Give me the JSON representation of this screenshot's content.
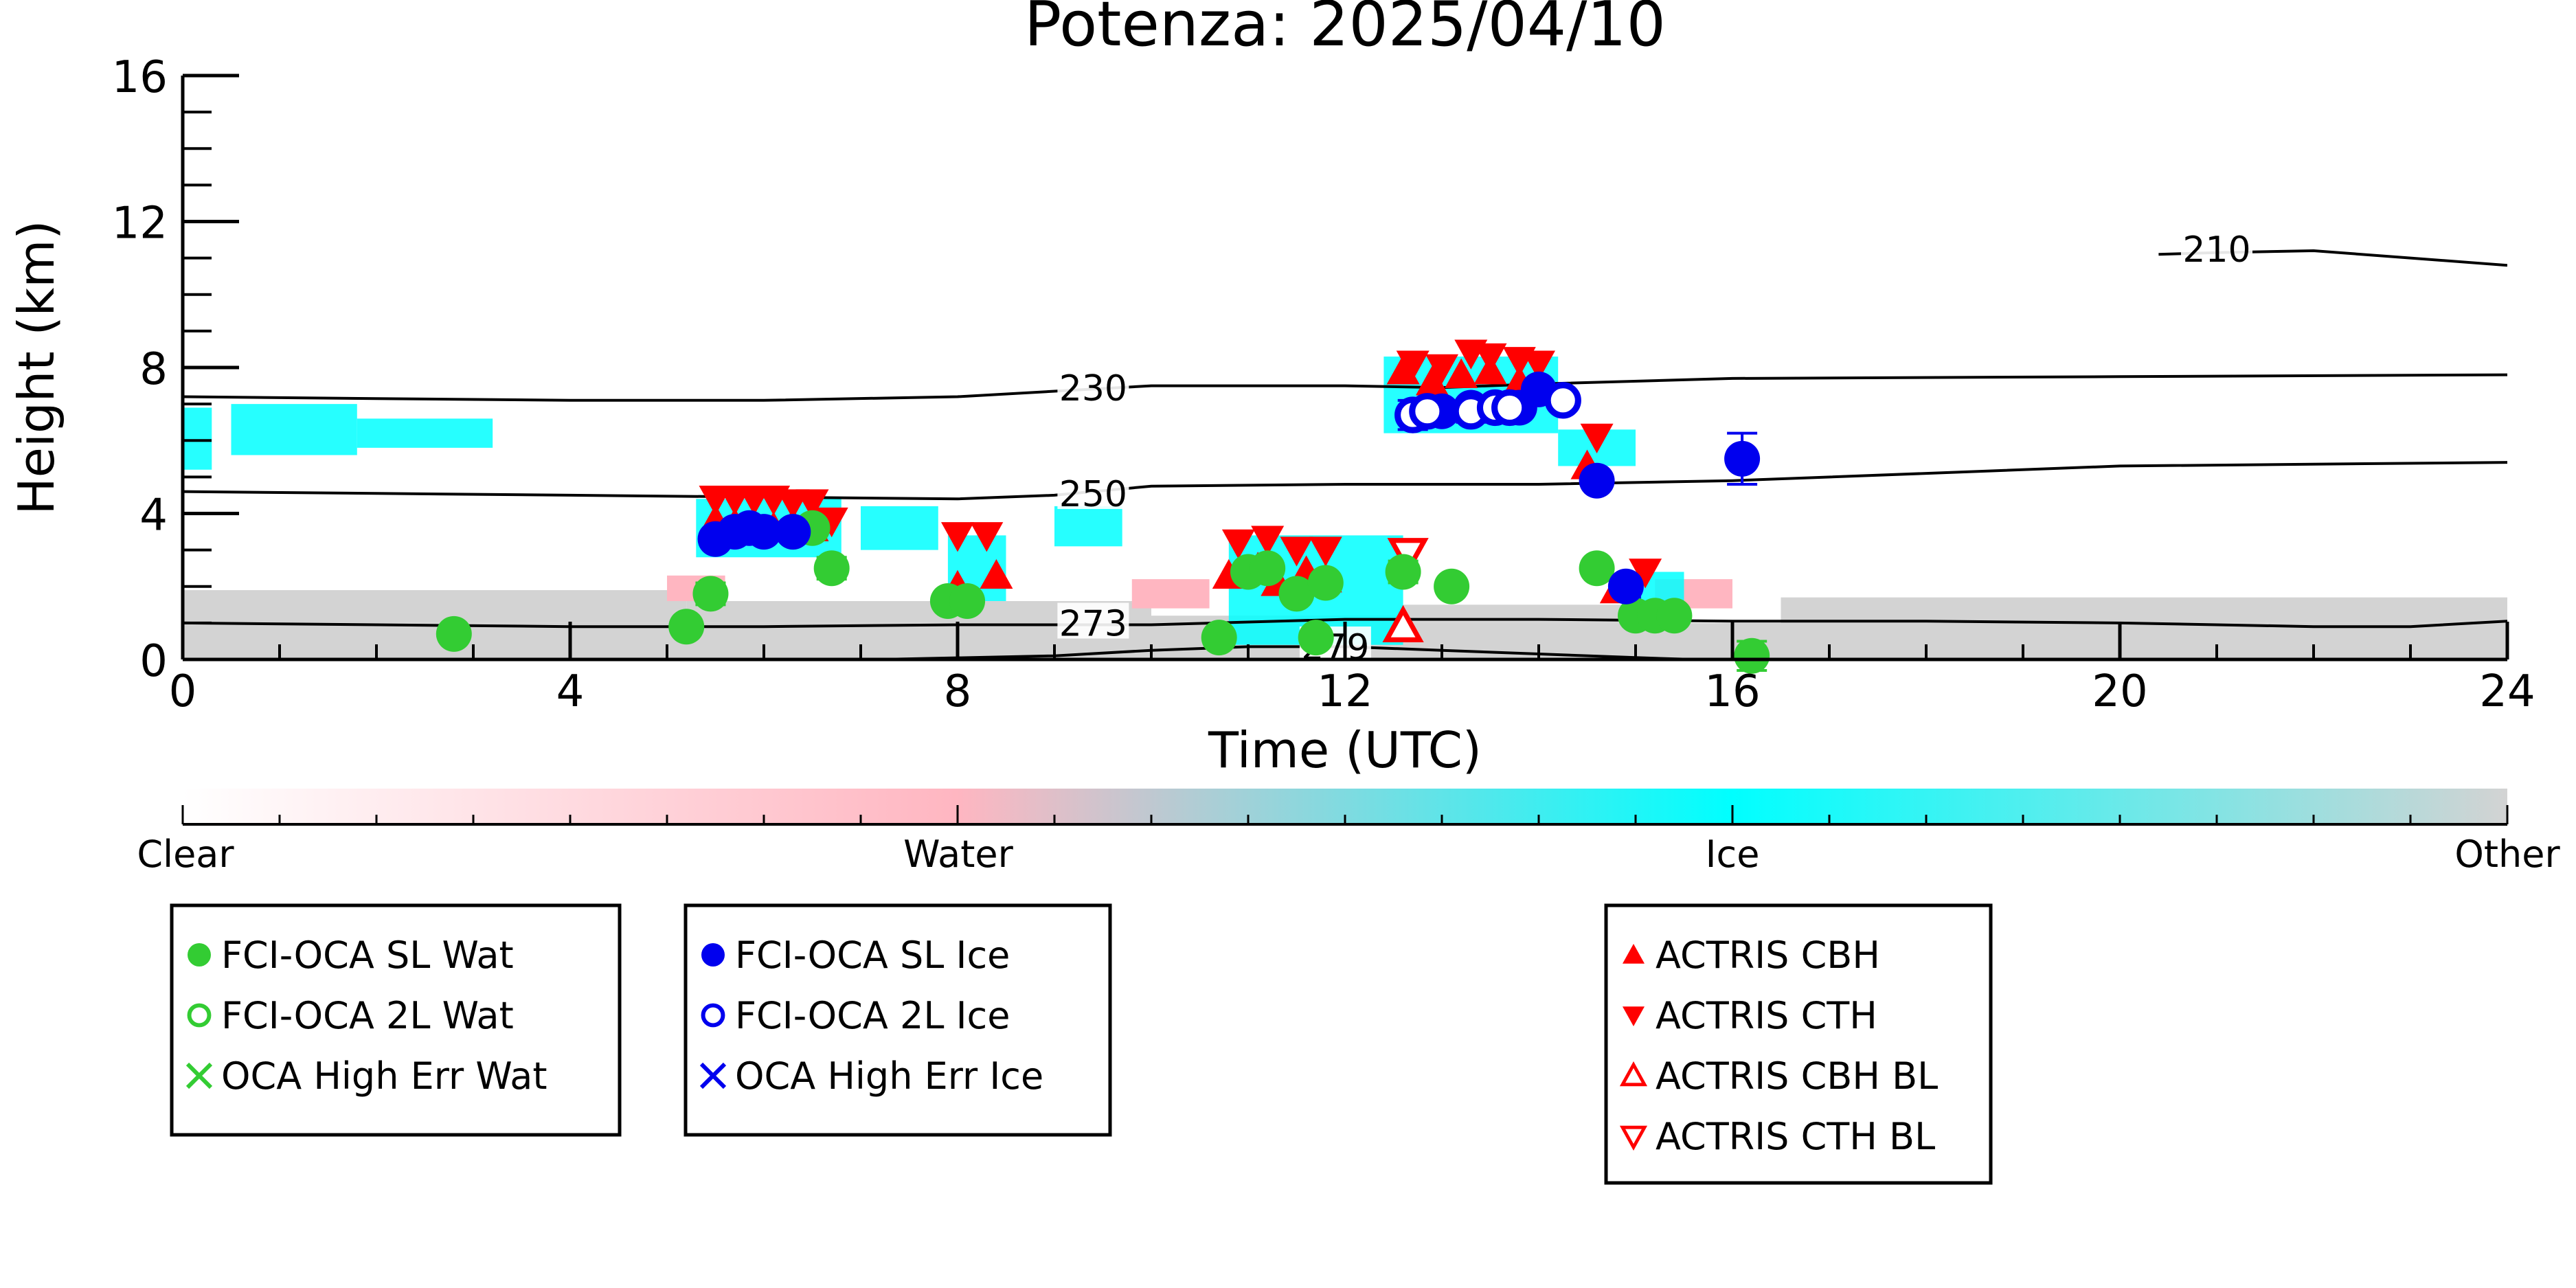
{
  "chart_data": {
    "type": "scatter",
    "title": "Potenza: 2025/04/10",
    "xlabel": "Time (UTC)",
    "ylabel": "Height (km)",
    "xlim": [
      0,
      24
    ],
    "ylim": [
      0,
      16
    ],
    "xticks": [
      "0",
      "4",
      "8",
      "12",
      "16",
      "20",
      "24"
    ],
    "yticks": [
      "0",
      "4",
      "8",
      "12",
      "16"
    ],
    "colorbar": {
      "labels": [
        "Clear",
        "Water",
        "Ice",
        "Other"
      ],
      "colors": [
        "#ffffff",
        "#ffb6c1",
        "#00ffff",
        "#d3d3d3"
      ]
    },
    "colors": {
      "water": "#33cc33",
      "ice": "#0000ee",
      "actris": "#ff0000",
      "cloud_ice": "#00ffff",
      "cloud_water": "#ffb6c1",
      "other": "#d3d3d3",
      "contour": "#000000"
    },
    "contours": [
      {
        "label": "210",
        "label_x": 21.0,
        "label_y": 11.2,
        "points": [
          [
            20.4,
            11.1
          ],
          [
            21.0,
            11.15
          ],
          [
            22.0,
            11.2
          ],
          [
            23.0,
            11.0
          ],
          [
            24.0,
            10.8
          ]
        ]
      },
      {
        "label": "230",
        "label_x": 9.4,
        "label_y": 7.4,
        "points": [
          [
            0,
            7.2
          ],
          [
            2,
            7.15
          ],
          [
            4,
            7.1
          ],
          [
            6,
            7.1
          ],
          [
            8,
            7.2
          ],
          [
            9,
            7.35
          ],
          [
            10,
            7.5
          ],
          [
            12,
            7.5
          ],
          [
            13,
            7.45
          ],
          [
            14,
            7.55
          ],
          [
            16,
            7.7
          ],
          [
            20,
            7.75
          ],
          [
            24,
            7.8
          ]
        ]
      },
      {
        "label": "250",
        "label_x": 9.4,
        "label_y": 4.5,
        "points": [
          [
            0,
            4.6
          ],
          [
            2,
            4.55
          ],
          [
            4,
            4.5
          ],
          [
            6,
            4.45
          ],
          [
            8,
            4.4
          ],
          [
            9,
            4.5
          ],
          [
            10,
            4.75
          ],
          [
            12,
            4.8
          ],
          [
            14,
            4.8
          ],
          [
            16,
            4.9
          ],
          [
            18,
            5.1
          ],
          [
            20,
            5.3
          ],
          [
            24,
            5.4
          ]
        ]
      },
      {
        "label": "273",
        "label_x": 9.4,
        "label_y": 0.95,
        "points": [
          [
            0,
            1.0
          ],
          [
            2,
            0.95
          ],
          [
            4,
            0.9
          ],
          [
            6,
            0.9
          ],
          [
            8,
            0.95
          ],
          [
            10,
            0.95
          ],
          [
            12,
            1.1
          ],
          [
            14,
            1.1
          ],
          [
            16,
            1.05
          ],
          [
            18,
            1.05
          ],
          [
            20,
            1.0
          ],
          [
            21,
            0.95
          ],
          [
            22,
            0.9
          ],
          [
            23,
            0.9
          ],
          [
            24,
            1.05
          ]
        ]
      },
      {
        "label": "279",
        "label_x": 11.9,
        "label_y": 0.3,
        "points": [
          [
            7.2,
            0.0
          ],
          [
            9,
            0.1
          ],
          [
            10,
            0.25
          ],
          [
            11,
            0.35
          ],
          [
            12,
            0.35
          ],
          [
            13,
            0.25
          ],
          [
            14,
            0.15
          ],
          [
            15,
            0.05
          ],
          [
            15.6,
            0.0
          ]
        ]
      }
    ],
    "cloudmask_regions": [
      {
        "type": "other",
        "x0": 0.0,
        "x1": 24.0,
        "y0": 0.0,
        "y1": 1.0
      },
      {
        "type": "other",
        "x0": 0.0,
        "x1": 5.2,
        "y0": 1.0,
        "y1": 1.9
      },
      {
        "type": "other",
        "x0": 5.2,
        "x1": 10.0,
        "y0": 1.0,
        "y1": 1.6
      },
      {
        "type": "other",
        "x0": 10.0,
        "x1": 12.6,
        "y0": 1.0,
        "y1": 1.2
      },
      {
        "type": "other",
        "x0": 12.6,
        "x1": 15.5,
        "y0": 1.0,
        "y1": 1.5
      },
      {
        "type": "other",
        "x0": 16.5,
        "x1": 24.0,
        "y0": 1.0,
        "y1": 1.7
      },
      {
        "type": "water",
        "x0": 5.0,
        "x1": 5.6,
        "y0": 1.6,
        "y1": 2.3
      },
      {
        "type": "water",
        "x0": 9.8,
        "x1": 10.6,
        "y0": 1.4,
        "y1": 2.2
      },
      {
        "type": "water",
        "x0": 15.2,
        "x1": 16.0,
        "y0": 1.4,
        "y1": 2.2
      },
      {
        "type": "ice",
        "x0": 0.0,
        "x1": 0.3,
        "y0": 5.2,
        "y1": 6.9
      },
      {
        "type": "ice",
        "x0": 0.5,
        "x1": 1.8,
        "y0": 5.6,
        "y1": 7.0
      },
      {
        "type": "ice",
        "x0": 1.8,
        "x1": 3.2,
        "y0": 5.8,
        "y1": 6.6
      },
      {
        "type": "ice",
        "x0": 5.3,
        "x1": 6.8,
        "y0": 2.8,
        "y1": 4.4
      },
      {
        "type": "ice",
        "x0": 7.0,
        "x1": 7.8,
        "y0": 3.0,
        "y1": 4.2
      },
      {
        "type": "ice",
        "x0": 7.9,
        "x1": 8.5,
        "y0": 1.6,
        "y1": 3.4
      },
      {
        "type": "ice",
        "x0": 9.0,
        "x1": 9.7,
        "y0": 3.1,
        "y1": 4.2
      },
      {
        "type": "ice",
        "x0": 10.8,
        "x1": 12.6,
        "y0": 0.4,
        "y1": 3.4
      },
      {
        "type": "ice",
        "x0": 12.4,
        "x1": 14.2,
        "y0": 6.2,
        "y1": 8.3
      },
      {
        "type": "ice",
        "x0": 14.2,
        "x1": 15.0,
        "y0": 5.3,
        "y1": 6.3
      },
      {
        "type": "ice",
        "x0": 14.9,
        "x1": 15.5,
        "y0": 1.3,
        "y1": 2.4
      }
    ],
    "series": [
      {
        "name": "FCI-OCA SL Wat",
        "marker": "filled-circle",
        "color": "#33cc33",
        "x": [
          2.8,
          5.2,
          5.45,
          6.3,
          6.5,
          6.7,
          7.9,
          8.1,
          10.7,
          11.0,
          11.2,
          11.5,
          11.7,
          11.8,
          12.6,
          13.1,
          14.6,
          15.0,
          15.2,
          15.4,
          16.2
        ],
        "y": [
          0.7,
          0.9,
          1.8,
          3.5,
          3.6,
          2.5,
          1.6,
          1.6,
          0.6,
          2.4,
          2.5,
          1.8,
          0.6,
          2.1,
          2.4,
          2.0,
          2.5,
          1.2,
          1.2,
          1.2,
          0.1
        ]
      },
      {
        "name": "FCI-OCA 2L Wat",
        "marker": "open-circle",
        "color": "#33cc33",
        "x": [],
        "y": []
      },
      {
        "name": "OCA High Err Wat",
        "marker": "x",
        "color": "#33cc33",
        "x": [],
        "y": []
      },
      {
        "name": "FCI-OCA SL Ice",
        "marker": "filled-circle",
        "color": "#0000ee",
        "x": [
          5.5,
          5.7,
          5.85,
          6.0,
          6.3,
          13.0,
          13.3,
          13.8,
          14.0,
          14.6,
          14.9,
          16.1
        ],
        "y": [
          3.3,
          3.5,
          3.6,
          3.5,
          3.5,
          6.8,
          6.9,
          6.9,
          7.4,
          4.9,
          2.0,
          5.5
        ]
      },
      {
        "name": "FCI-OCA 2L Ice",
        "marker": "open-circle",
        "color": "#0000ee",
        "x": [
          12.7,
          12.85,
          13.3,
          13.55,
          13.7,
          14.25
        ],
        "y": [
          6.7,
          6.8,
          6.8,
          6.9,
          6.9,
          7.1
        ]
      },
      {
        "name": "OCA High Err Ice",
        "marker": "x",
        "color": "#0000ee",
        "x": [],
        "y": []
      },
      {
        "name": "ACTRIS CBH",
        "marker": "triangle-up",
        "color": "#ff0000",
        "x": [
          5.5,
          5.7,
          5.9,
          6.1,
          6.3,
          6.5,
          8.0,
          8.4,
          10.8,
          11.1,
          11.3,
          11.6,
          11.8,
          12.6,
          12.9,
          13.2,
          13.5,
          13.8,
          14.5,
          14.8
        ],
        "y": [
          3.8,
          3.7,
          3.5,
          3.6,
          3.7,
          3.6,
          2.0,
          2.3,
          2.3,
          2.5,
          2.1,
          2.4,
          2.2,
          7.9,
          7.6,
          7.8,
          7.9,
          7.6,
          5.3,
          1.9
        ]
      },
      {
        "name": "ACTRIS CTH",
        "marker": "triangle-down",
        "color": "#ff0000",
        "x": [
          5.5,
          5.7,
          5.9,
          6.1,
          6.3,
          6.5,
          6.7,
          8.0,
          8.3,
          10.9,
          11.2,
          11.5,
          11.8,
          12.7,
          13.0,
          13.3,
          13.5,
          13.8,
          14.0,
          14.6,
          15.1
        ],
        "y": [
          4.4,
          4.4,
          4.4,
          4.4,
          4.3,
          4.3,
          3.8,
          3.4,
          3.4,
          3.2,
          3.3,
          3.0,
          3.0,
          8.1,
          8.0,
          8.4,
          8.3,
          8.2,
          8.1,
          6.1,
          2.4
        ]
      },
      {
        "name": "ACTRIS CBH BL",
        "marker": "open-triangle-up",
        "color": "#ff0000",
        "x": [
          12.6
        ],
        "y": [
          0.9
        ]
      },
      {
        "name": "ACTRIS CTH BL",
        "marker": "open-triangle-down",
        "color": "#ff0000",
        "x": [
          12.65
        ],
        "y": [
          2.9
        ]
      }
    ],
    "errorbars": {
      "FCI-OCA SL Wat": {
        "x": [
          5.45,
          6.7,
          7.9,
          11.8,
          12.6,
          13.1,
          14.6,
          16.2
        ],
        "y": [
          1.8,
          2.5,
          1.6,
          2.1,
          2.4,
          2.0,
          2.5,
          0.1
        ],
        "err": [
          0.3,
          0.3,
          0.2,
          0.2,
          0.3,
          0.2,
          0.2,
          0.4
        ]
      },
      "FCI-OCA SL Ice": {
        "x": [
          14.9,
          16.1
        ],
        "y": [
          2.0,
          5.5
        ],
        "err": [
          0.3,
          0.7
        ]
      },
      "FCI-OCA 2L Ice": {
        "x": [
          12.7,
          12.85,
          13.3
        ],
        "y": [
          6.7,
          6.8,
          6.8
        ],
        "err": [
          0.4,
          0.3,
          0.3
        ]
      }
    },
    "legends": [
      {
        "entries": [
          "FCI-OCA SL Wat",
          "FCI-OCA 2L Wat",
          "OCA High Err Wat"
        ]
      },
      {
        "entries": [
          "FCI-OCA SL Ice",
          "FCI-OCA 2L Ice",
          "OCA High Err Ice"
        ]
      },
      {
        "entries": [
          "ACTRIS CBH",
          "ACTRIS CTH",
          "ACTRIS CBH BL",
          "ACTRIS CTH BL"
        ]
      }
    ]
  }
}
